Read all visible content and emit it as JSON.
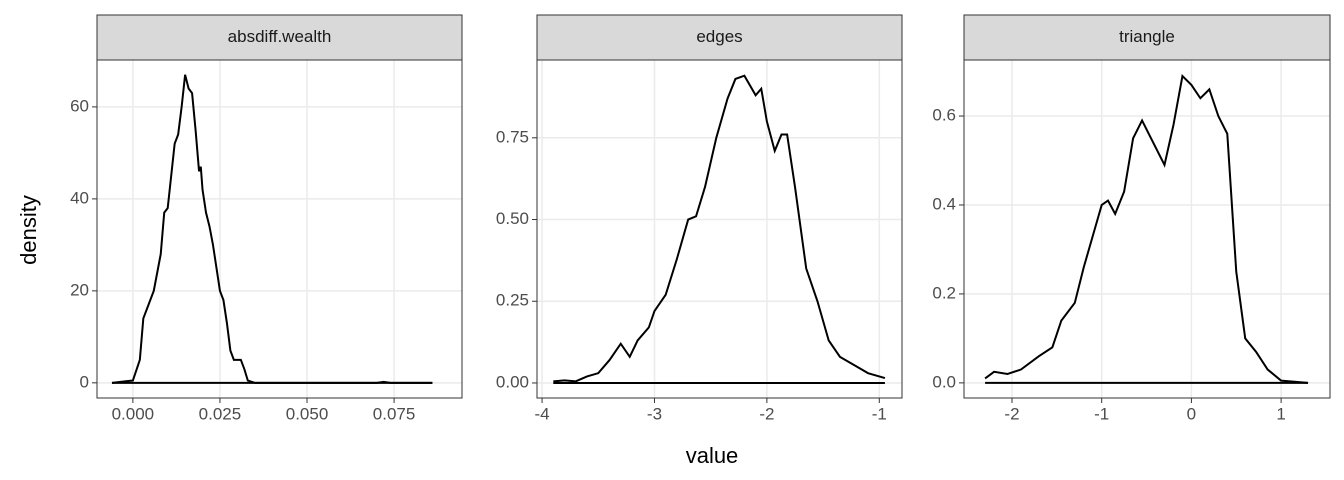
{
  "xlabel": "value",
  "ylabel": "density",
  "chart_data": [
    {
      "type": "line",
      "title": "absdiff.wealth",
      "color": "#000000",
      "grid": true,
      "xlim": [
        -0.0103,
        0.0945
      ],
      "ylim": [
        -3.3,
        70.2
      ],
      "xticks": [
        {
          "value": 0,
          "label": "0.000"
        },
        {
          "value": 0.025,
          "label": "0.025"
        },
        {
          "value": 0.05,
          "label": "0.050"
        },
        {
          "value": 0.075,
          "label": "0.075"
        }
      ],
      "yticks": [
        0,
        20,
        40,
        60
      ],
      "x": [
        -0.006,
        0.0,
        0.002,
        0.003,
        0.004,
        0.006,
        0.008,
        0.009,
        0.01,
        0.011,
        0.012,
        0.013,
        0.014,
        0.015,
        0.016,
        0.017,
        0.018,
        0.019,
        0.0195,
        0.02,
        0.021,
        0.022,
        0.023,
        0.025,
        0.026,
        0.027,
        0.028,
        0.029,
        0.03,
        0.031,
        0.032,
        0.033,
        0.035,
        0.05,
        0.07,
        0.072,
        0.074,
        0.086
      ],
      "values": [
        0,
        0.5,
        5,
        14,
        16,
        20,
        28,
        37,
        38,
        45,
        52,
        54,
        60,
        67,
        64,
        63,
        55,
        46,
        47,
        42,
        37,
        34,
        30,
        20,
        18,
        13,
        7,
        5,
        5,
        5,
        3,
        0.5,
        0,
        0,
        0,
        0.2,
        0,
        0
      ]
    },
    {
      "type": "line",
      "title": "edges",
      "color": "#000000",
      "grid": true,
      "xlim": [
        -4.045,
        -0.798
      ],
      "ylim": [
        -0.046,
        0.988
      ],
      "xticks": [
        -4,
        -3,
        -2,
        -1
      ],
      "yticks": [
        {
          "value": 0,
          "label": "0.00"
        },
        {
          "value": 0.25,
          "label": "0.25"
        },
        {
          "value": 0.5,
          "label": "0.50"
        },
        {
          "value": 0.75,
          "label": "0.75"
        }
      ],
      "x": [
        -3.9,
        -3.8,
        -3.7,
        -3.6,
        -3.5,
        -3.4,
        -3.3,
        -3.22,
        -3.15,
        -3.05,
        -3.0,
        -2.9,
        -2.8,
        -2.7,
        -2.63,
        -2.55,
        -2.45,
        -2.35,
        -2.28,
        -2.2,
        -2.15,
        -2.1,
        -2.05,
        -2.0,
        -1.93,
        -1.87,
        -1.82,
        -1.75,
        -1.65,
        -1.55,
        -1.45,
        -1.35,
        -1.2,
        -1.1,
        -0.95
      ],
      "values": [
        0.005,
        0.008,
        0.005,
        0.02,
        0.03,
        0.07,
        0.12,
        0.08,
        0.13,
        0.17,
        0.22,
        0.27,
        0.38,
        0.5,
        0.51,
        0.6,
        0.75,
        0.87,
        0.93,
        0.94,
        0.91,
        0.88,
        0.9,
        0.8,
        0.71,
        0.76,
        0.76,
        0.6,
        0.35,
        0.25,
        0.13,
        0.08,
        0.05,
        0.03,
        0.015
      ]
    },
    {
      "type": "line",
      "title": "triangle",
      "color": "#000000",
      "grid": true,
      "xlim": [
        -2.535,
        1.545
      ],
      "ylim": [
        -0.034,
        0.726
      ],
      "xticks": [
        -2,
        -1,
        0,
        1
      ],
      "yticks": [
        {
          "value": 0,
          "label": "0.0"
        },
        {
          "value": 0.2,
          "label": "0.2"
        },
        {
          "value": 0.4,
          "label": "0.4"
        },
        {
          "value": 0.6,
          "label": "0.6"
        }
      ],
      "x": [
        -2.3,
        -2.2,
        -2.05,
        -1.9,
        -1.7,
        -1.55,
        -1.45,
        -1.3,
        -1.2,
        -1.1,
        -1.0,
        -0.93,
        -0.85,
        -0.75,
        -0.65,
        -0.55,
        -0.45,
        -0.3,
        -0.2,
        -0.1,
        0.0,
        0.1,
        0.2,
        0.3,
        0.4,
        0.5,
        0.6,
        0.72,
        0.85,
        1.0,
        1.3
      ],
      "values": [
        0.01,
        0.025,
        0.02,
        0.03,
        0.06,
        0.08,
        0.14,
        0.18,
        0.26,
        0.33,
        0.4,
        0.41,
        0.38,
        0.43,
        0.55,
        0.59,
        0.55,
        0.49,
        0.58,
        0.69,
        0.67,
        0.64,
        0.66,
        0.6,
        0.56,
        0.25,
        0.1,
        0.07,
        0.03,
        0.005,
        0
      ]
    }
  ]
}
